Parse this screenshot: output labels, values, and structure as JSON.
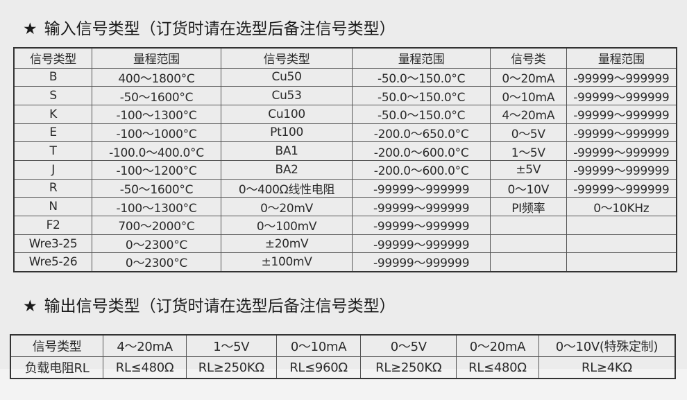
{
  "input_section": {
    "star": "★",
    "title": "输入信号类型（订货时请在选型后备注信号类型）",
    "headers": [
      "信号类型",
      "量程范围",
      "信号类型",
      "量程范围",
      "信号类",
      "量程范围"
    ],
    "rows": [
      [
        "B",
        "400～1800°C",
        "Cu50",
        "-50.0～150.0°C",
        "0～20mA",
        "-99999～999999"
      ],
      [
        "S",
        "-50～1600°C",
        "Cu53",
        "-50.0～150.0°C",
        "0～10mA",
        "-99999～999999"
      ],
      [
        "K",
        "-100～1300°C",
        "Cu100",
        "-50.0～150.0°C",
        "4～20mA",
        "-99999～999999"
      ],
      [
        "E",
        "-100～1000°C",
        "Pt100",
        "-200.0～650.0°C",
        "0～5V",
        "-99999～999999"
      ],
      [
        "T",
        "-100.0～400.0°C",
        "BA1",
        "-200.0～600.0°C",
        "1～5V",
        "-99999～999999"
      ],
      [
        "J",
        "-100～1200°C",
        "BA2",
        "-200.0～600.0°C",
        "±5V",
        "-99999～999999"
      ],
      [
        "R",
        "-50～1600°C",
        "0～400Ω线性电阻",
        "-99999～999999",
        "0～10V",
        "-99999～999999"
      ],
      [
        "N",
        "-100～1300°C",
        "0～20mV",
        "-99999～999999",
        "PI频率",
        "0～10KHz"
      ],
      [
        "F2",
        "700～2000°C",
        "0～100mV",
        "-99999～999999",
        "",
        ""
      ],
      [
        "Wre3-25",
        "0～2300°C",
        "±20mV",
        "-99999～999999",
        "",
        ""
      ],
      [
        "Wre5-26",
        "0～2300°C",
        "±100mV",
        "-99999～999999",
        "",
        ""
      ]
    ]
  },
  "output_section": {
    "star": "★",
    "title": "输出信号类型（订货时请在选型后备注信号类型）",
    "rows": [
      [
        "信号类型",
        "4～20mA",
        "1～5V",
        "0～10mA",
        "0～5V",
        "0～20mA",
        "0～10V(特殊定制)"
      ],
      [
        "负载电阻RL",
        "RL≤480Ω",
        "RL≥250KΩ",
        "RL≤960Ω",
        "RL≥250KΩ",
        "RL≤480Ω",
        "RL≥4KΩ"
      ]
    ]
  }
}
